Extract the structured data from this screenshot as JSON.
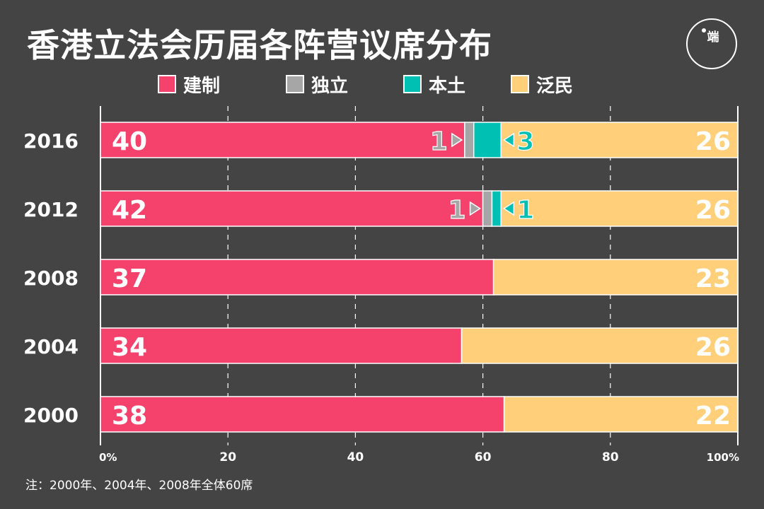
{
  "title": "香港立法会历届各阵营议席分布",
  "logo": {
    "text": "端",
    "icon": "initium-logo"
  },
  "note": "注：2000年、2004年、2008年全体60席",
  "chart_data": {
    "type": "bar",
    "orientation": "horizontal",
    "stacked": true,
    "normalized_percent": true,
    "title": "香港立法会历届各阵营议席分布",
    "categories": [
      "2016",
      "2012",
      "2008",
      "2004",
      "2000"
    ],
    "series": [
      {
        "name": "建制",
        "color": "#f5426c",
        "values": [
          40,
          42,
          37,
          34,
          38
        ]
      },
      {
        "name": "独立",
        "color": "#a6a6a6",
        "values": [
          1,
          1,
          0,
          0,
          0
        ]
      },
      {
        "name": "本土",
        "color": "#00bfb3",
        "values": [
          3,
          1,
          0,
          0,
          0
        ]
      },
      {
        "name": "泛民",
        "color": "#ffcf7a",
        "values": [
          26,
          26,
          23,
          26,
          22
        ]
      }
    ],
    "xaxis": {
      "range": [
        0,
        100
      ],
      "ticks": [
        0,
        20,
        40,
        60,
        80,
        100
      ],
      "tick_labels": [
        "0%",
        "20",
        "40",
        "60",
        "80",
        "100%"
      ]
    },
    "grid": "vertical dashed",
    "legend": "top",
    "label_colors": {
      "独立": "#a6a6a6",
      "本土": "#00bfb3"
    }
  }
}
